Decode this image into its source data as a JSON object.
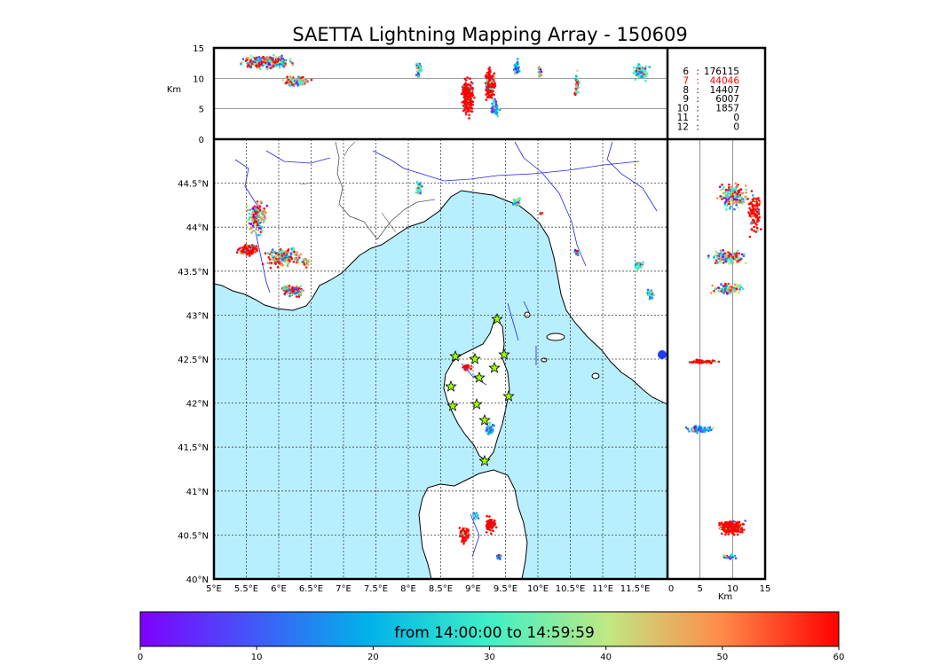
{
  "title": "SAETTA Lightning Mapping Array - 150609",
  "axis_unit": "Km",
  "map": {
    "lon_ticks": [
      "5°E",
      "5.5°E",
      "6°E",
      "6.5°E",
      "7°E",
      "7.5°E",
      "8°E",
      "8.5°E",
      "9°E",
      "9.5°E",
      "10°E",
      "10.5°E",
      "11°E",
      "11.5°E"
    ],
    "lat_ticks": [
      "40°N",
      "40.5°N",
      "41°N",
      "41.5°N",
      "42°N",
      "42.5°N",
      "43°N",
      "43.5°N",
      "44°N",
      "44.5°N"
    ],
    "lon_range": [
      5,
      12
    ],
    "lat_range": [
      40,
      45
    ],
    "grid": true,
    "sea_color": "#b8efff",
    "land_color": "#ffffff",
    "coast_color": "#000000",
    "border_color": "#555555",
    "river_color": "#2222ee",
    "station_marker": "star-icon",
    "station_color": "#99ff00"
  },
  "altitude_panel": {
    "ticks": [
      "0",
      "5",
      "10",
      "15"
    ],
    "range": [
      0,
      15
    ]
  },
  "stats": [
    {
      "stations": "6",
      "sep": ":",
      "count": "176115",
      "color": "#000000"
    },
    {
      "stations": "7",
      "sep": ":",
      "count": "44046",
      "color": "#ff0000"
    },
    {
      "stations": "8",
      "sep": ":",
      "count": "14407",
      "color": "#000000"
    },
    {
      "stations": "9",
      "sep": ":",
      "count": "6007",
      "color": "#000000"
    },
    {
      "stations": "10",
      "sep": ":",
      "count": "1857",
      "color": "#000000"
    },
    {
      "stations": "11",
      "sep": ":",
      "count": "0",
      "color": "#000000"
    },
    {
      "stations": "12",
      "sep": ":",
      "count": "0",
      "color": "#000000"
    }
  ],
  "colorbar": {
    "label": "from 14:00:00 to 14:59:59",
    "ticks": [
      "0",
      "10",
      "20",
      "30",
      "40",
      "50",
      "60"
    ],
    "range": [
      0,
      60
    ],
    "colormap": "rainbow"
  }
}
